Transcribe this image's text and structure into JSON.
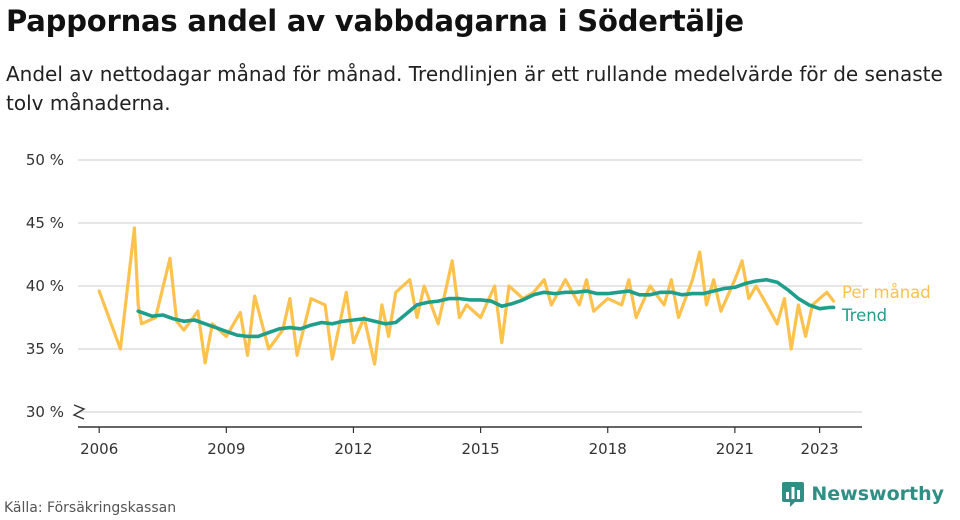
{
  "header": {
    "title": "Pappornas andel av vabbdagarna i Södertälje",
    "subtitle": "Andel av nettodagar månad för månad. Trendlinjen är ett rullande medelvärde för de senaste tolv månaderna."
  },
  "footer": {
    "source": "Källa: Försäkringskassan",
    "brand": "Newsworthy"
  },
  "colors": {
    "monthly": "#fcc24d",
    "trend": "#1f9e8b",
    "grid": "#d6d6d6",
    "axis": "#333333",
    "brand": "#2f8f84"
  },
  "chart_data": {
    "type": "line",
    "x_unit": "year",
    "ylim": [
      30,
      50
    ],
    "y_ticks": [
      30,
      35,
      40,
      45,
      50
    ],
    "y_tick_labels": [
      "30 %",
      "35 %",
      "40 %",
      "45 %",
      "50 %"
    ],
    "y_axis_broken": true,
    "x_ticks": [
      2006,
      2009,
      2012,
      2015,
      2018,
      2021,
      2023
    ],
    "x_tick_labels": [
      "2006",
      "2009",
      "2012",
      "2015",
      "2018",
      "2021",
      "2023"
    ],
    "grid": true,
    "legend": "direct labels at line ends",
    "series": [
      {
        "name": "Per månad",
        "x": [
          2006.0,
          2006.5,
          2006.83,
          2006.92,
          2007.0,
          2007.33,
          2007.67,
          2007.83,
          2008.0,
          2008.33,
          2008.5,
          2008.67,
          2009.0,
          2009.33,
          2009.5,
          2009.67,
          2010.0,
          2010.33,
          2010.5,
          2010.67,
          2011.0,
          2011.33,
          2011.5,
          2011.83,
          2012.0,
          2012.25,
          2012.5,
          2012.67,
          2012.83,
          2013.0,
          2013.33,
          2013.5,
          2013.67,
          2014.0,
          2014.33,
          2014.5,
          2014.67,
          2015.0,
          2015.33,
          2015.5,
          2015.67,
          2016.0,
          2016.25,
          2016.5,
          2016.67,
          2017.0,
          2017.33,
          2017.5,
          2017.67,
          2018.0,
          2018.33,
          2018.5,
          2018.67,
          2019.0,
          2019.33,
          2019.5,
          2019.67,
          2020.0,
          2020.17,
          2020.33,
          2020.5,
          2020.67,
          2021.0,
          2021.17,
          2021.33,
          2021.5,
          2021.67,
          2022.0,
          2022.17,
          2022.33,
          2022.5,
          2022.67,
          2022.83,
          2023.0,
          2023.17,
          2023.33
        ],
        "values": [
          39.6,
          35.0,
          44.6,
          38.5,
          37.0,
          37.5,
          42.2,
          37.2,
          36.5,
          38.0,
          33.9,
          37.0,
          36.0,
          37.9,
          34.5,
          39.2,
          35.0,
          36.5,
          39.0,
          34.5,
          39.0,
          38.5,
          34.2,
          39.5,
          35.5,
          37.5,
          33.8,
          38.5,
          36.0,
          39.5,
          40.5,
          37.5,
          40.0,
          37.0,
          42.0,
          37.5,
          38.5,
          37.5,
          40.0,
          35.5,
          40.0,
          39.0,
          39.5,
          40.5,
          38.5,
          40.5,
          38.5,
          40.5,
          38.0,
          39.0,
          38.5,
          40.5,
          37.5,
          40.0,
          38.5,
          40.5,
          37.5,
          40.5,
          42.7,
          38.5,
          40.5,
          38.0,
          40.5,
          42.0,
          39.0,
          40.0,
          39.0,
          37.0,
          39.0,
          35.0,
          38.5,
          36.0,
          38.5,
          39.0,
          39.5,
          38.8
        ]
      },
      {
        "name": "Trend",
        "x": [
          2006.92,
          2007.25,
          2007.5,
          2007.75,
          2008.0,
          2008.25,
          2008.5,
          2008.75,
          2009.0,
          2009.25,
          2009.5,
          2009.75,
          2010.0,
          2010.25,
          2010.5,
          2010.75,
          2011.0,
          2011.25,
          2011.5,
          2011.75,
          2012.0,
          2012.25,
          2012.5,
          2012.75,
          2013.0,
          2013.25,
          2013.5,
          2013.75,
          2014.0,
          2014.25,
          2014.5,
          2014.75,
          2015.0,
          2015.25,
          2015.5,
          2015.75,
          2016.0,
          2016.25,
          2016.5,
          2016.75,
          2017.0,
          2017.25,
          2017.5,
          2017.75,
          2018.0,
          2018.25,
          2018.5,
          2018.75,
          2019.0,
          2019.25,
          2019.5,
          2019.75,
          2020.0,
          2020.25,
          2020.5,
          2020.75,
          2021.0,
          2021.25,
          2021.5,
          2021.75,
          2022.0,
          2022.25,
          2022.5,
          2022.75,
          2023.0,
          2023.25,
          2023.33
        ],
        "values": [
          38.0,
          37.6,
          37.7,
          37.4,
          37.2,
          37.3,
          37.0,
          36.7,
          36.4,
          36.1,
          36.0,
          36.0,
          36.3,
          36.6,
          36.7,
          36.6,
          36.9,
          37.1,
          37.0,
          37.2,
          37.3,
          37.4,
          37.2,
          37.0,
          37.1,
          37.8,
          38.5,
          38.7,
          38.8,
          39.0,
          39.0,
          38.9,
          38.9,
          38.8,
          38.4,
          38.6,
          38.9,
          39.3,
          39.5,
          39.4,
          39.5,
          39.5,
          39.6,
          39.4,
          39.4,
          39.5,
          39.6,
          39.3,
          39.3,
          39.5,
          39.5,
          39.3,
          39.4,
          39.4,
          39.6,
          39.8,
          39.9,
          40.2,
          40.4,
          40.5,
          40.3,
          39.7,
          39.0,
          38.5,
          38.2,
          38.3,
          38.3
        ]
      }
    ]
  }
}
